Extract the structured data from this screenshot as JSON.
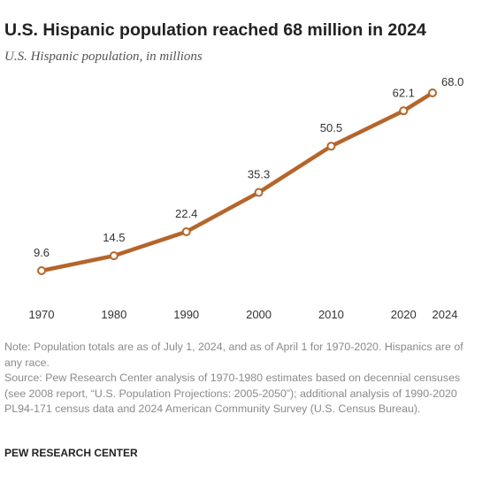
{
  "chart_data": {
    "type": "line",
    "title": "U.S. Hispanic population reached 68 million in 2024",
    "subtitle": "U.S. Hispanic population, in millions",
    "x": [
      1970,
      1980,
      1990,
      2000,
      2010,
      2020,
      2024
    ],
    "values": [
      9.6,
      14.5,
      22.4,
      35.3,
      50.5,
      62.1,
      68
    ],
    "value_labels": [
      "9.6",
      "14.5",
      "22.4",
      "35.3",
      "50.5",
      "62.1",
      "68.0"
    ],
    "xlim": [
      1970,
      2024
    ],
    "xticks": [
      1970,
      1980,
      1990,
      2000,
      2010,
      2020,
      2024
    ],
    "color": "#b5652b",
    "note": "Note: Population totals are as of July 1, 2024, and as of April 1 for 1970-2020. Hispanics are of any race.",
    "source": "Source: Pew Research Center analysis of 1970-1980 estimates based on decennial censuses (see 2008 report, “U.S. Population Projections: 2005-2050”); additional analysis of 1990-2020 PL94-171 census data and 2024 American Community Survey (U.S. Census Bureau).",
    "credit": "PEW RESEARCH CENTER"
  }
}
